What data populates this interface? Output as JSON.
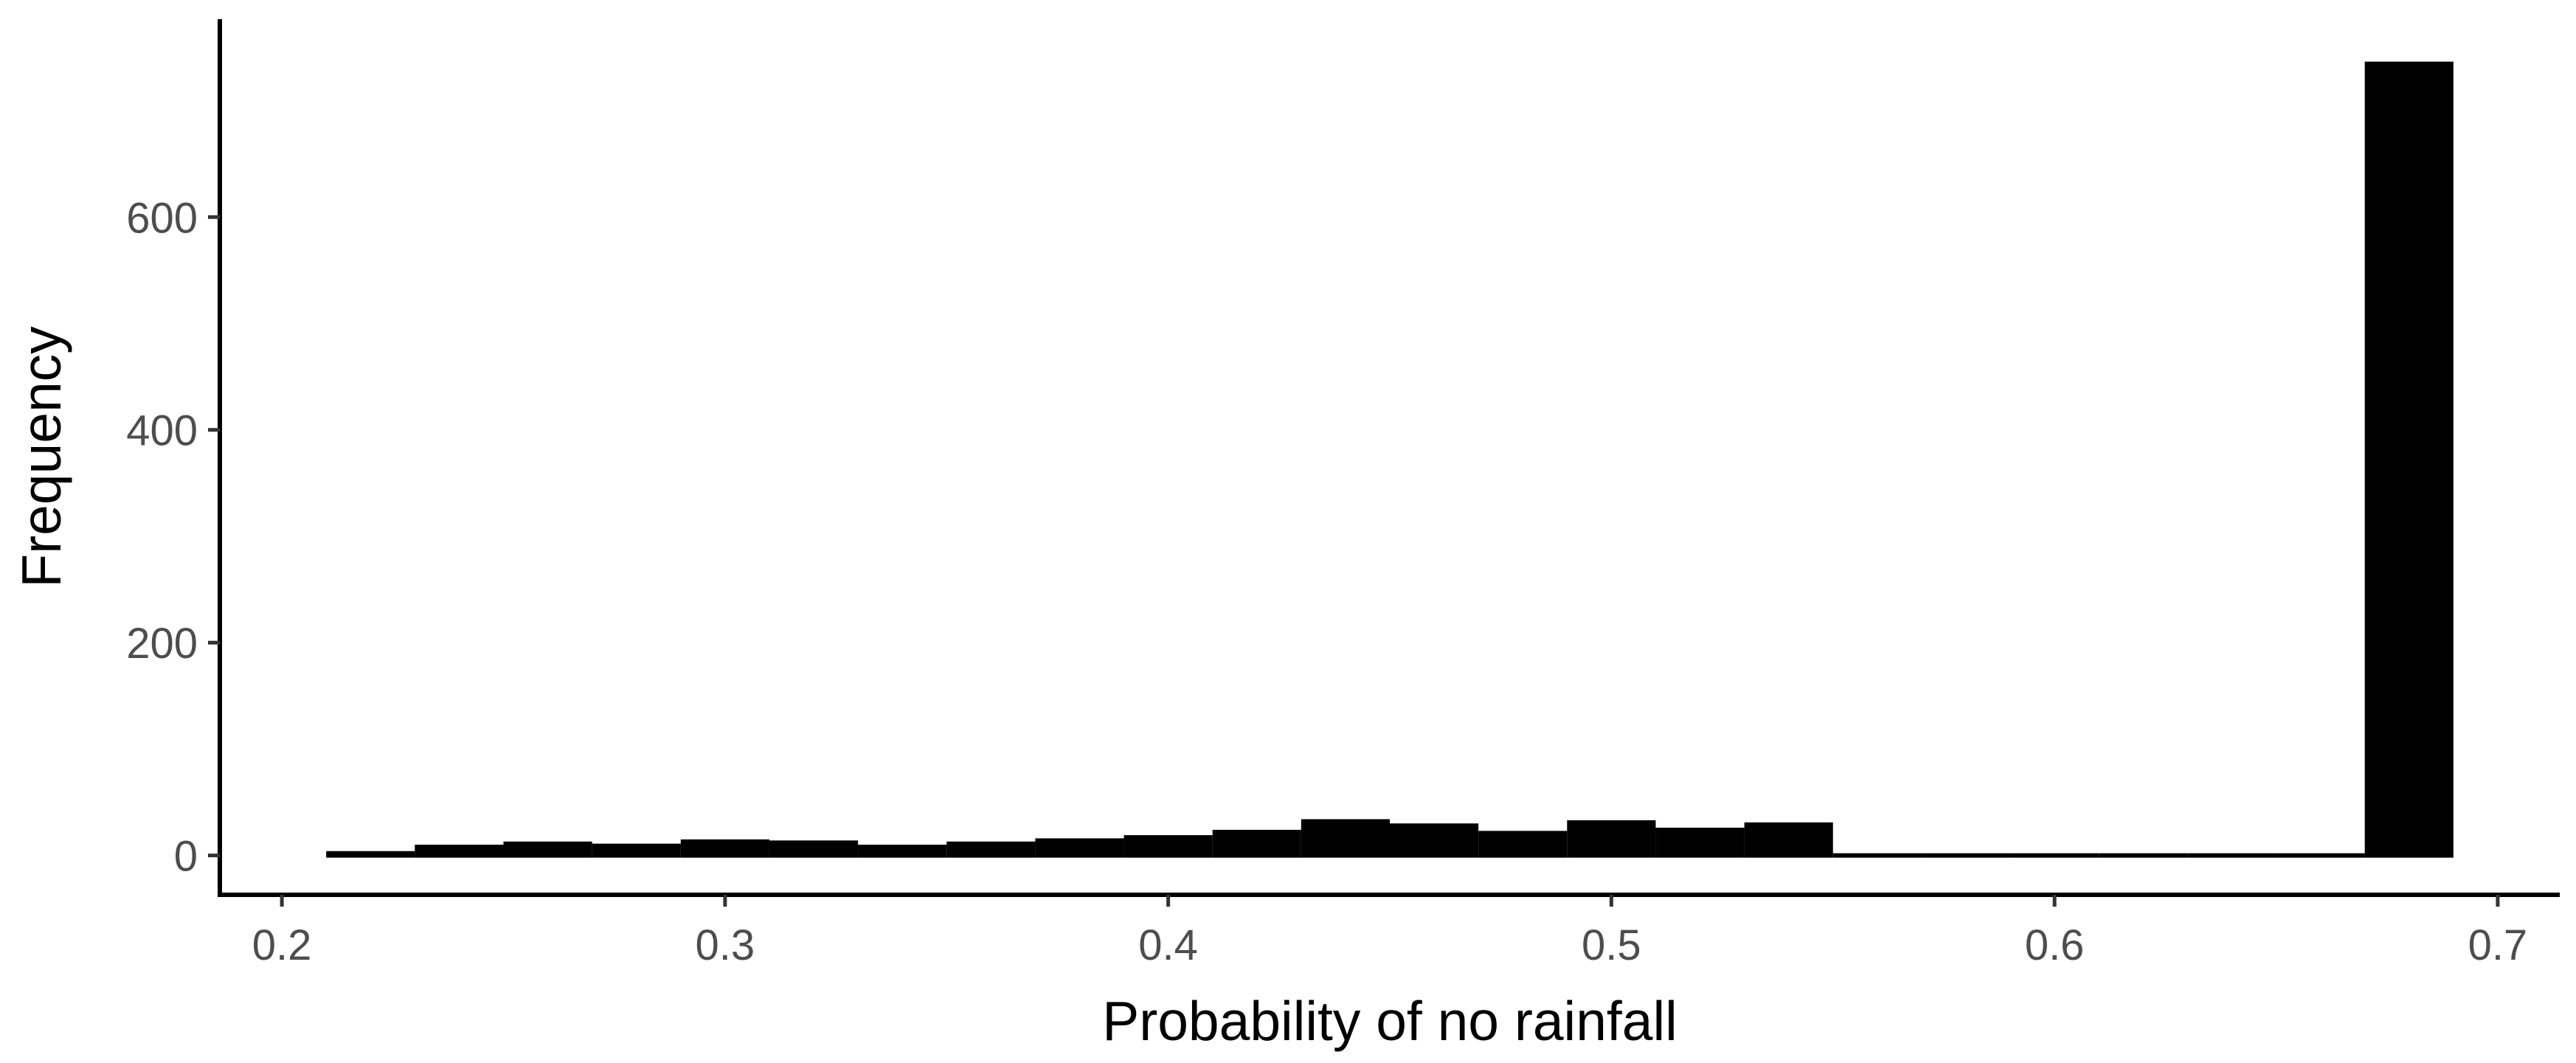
{
  "chart_data": {
    "type": "bar",
    "title": "",
    "xlabel": "Probability of no rainfall",
    "ylabel": "Frequency",
    "xlim": [
      0.186,
      0.714
    ],
    "ylim": [
      -37,
      786
    ],
    "x_ticks": [
      0.2,
      0.3,
      0.4,
      0.5,
      0.6,
      0.7
    ],
    "x_tick_labels": [
      "0.2",
      "0.3",
      "0.4",
      "0.5",
      "0.6",
      "0.7"
    ],
    "y_ticks": [
      0,
      200,
      400,
      600
    ],
    "y_tick_labels": [
      "0",
      "200",
      "400",
      "600"
    ],
    "grid": false,
    "legend": "none",
    "bar_color": "#000000",
    "bins": [
      {
        "x0": 0.21,
        "x1": 0.23,
        "count": 2
      },
      {
        "x0": 0.23,
        "x1": 0.25,
        "count": 8
      },
      {
        "x0": 0.25,
        "x1": 0.27,
        "count": 11
      },
      {
        "x0": 0.27,
        "x1": 0.29,
        "count": 9
      },
      {
        "x0": 0.29,
        "x1": 0.31,
        "count": 13
      },
      {
        "x0": 0.31,
        "x1": 0.33,
        "count": 12
      },
      {
        "x0": 0.33,
        "x1": 0.35,
        "count": 8
      },
      {
        "x0": 0.35,
        "x1": 0.37,
        "count": 11
      },
      {
        "x0": 0.37,
        "x1": 0.39,
        "count": 14
      },
      {
        "x0": 0.39,
        "x1": 0.41,
        "count": 17
      },
      {
        "x0": 0.41,
        "x1": 0.43,
        "count": 22
      },
      {
        "x0": 0.43,
        "x1": 0.45,
        "count": 32
      },
      {
        "x0": 0.45,
        "x1": 0.47,
        "count": 28
      },
      {
        "x0": 0.47,
        "x1": 0.49,
        "count": 21
      },
      {
        "x0": 0.49,
        "x1": 0.51,
        "count": 31
      },
      {
        "x0": 0.51,
        "x1": 0.53,
        "count": 24
      },
      {
        "x0": 0.53,
        "x1": 0.55,
        "count": 29
      },
      {
        "x0": 0.55,
        "x1": 0.57,
        "count": 0
      },
      {
        "x0": 0.57,
        "x1": 0.59,
        "count": 0
      },
      {
        "x0": 0.59,
        "x1": 0.61,
        "count": 0
      },
      {
        "x0": 0.61,
        "x1": 0.63,
        "count": 0
      },
      {
        "x0": 0.63,
        "x1": 0.65,
        "count": 0
      },
      {
        "x0": 0.65,
        "x1": 0.67,
        "count": 0
      },
      {
        "x0": 0.67,
        "x1": 0.69,
        "count": 744
      }
    ]
  }
}
